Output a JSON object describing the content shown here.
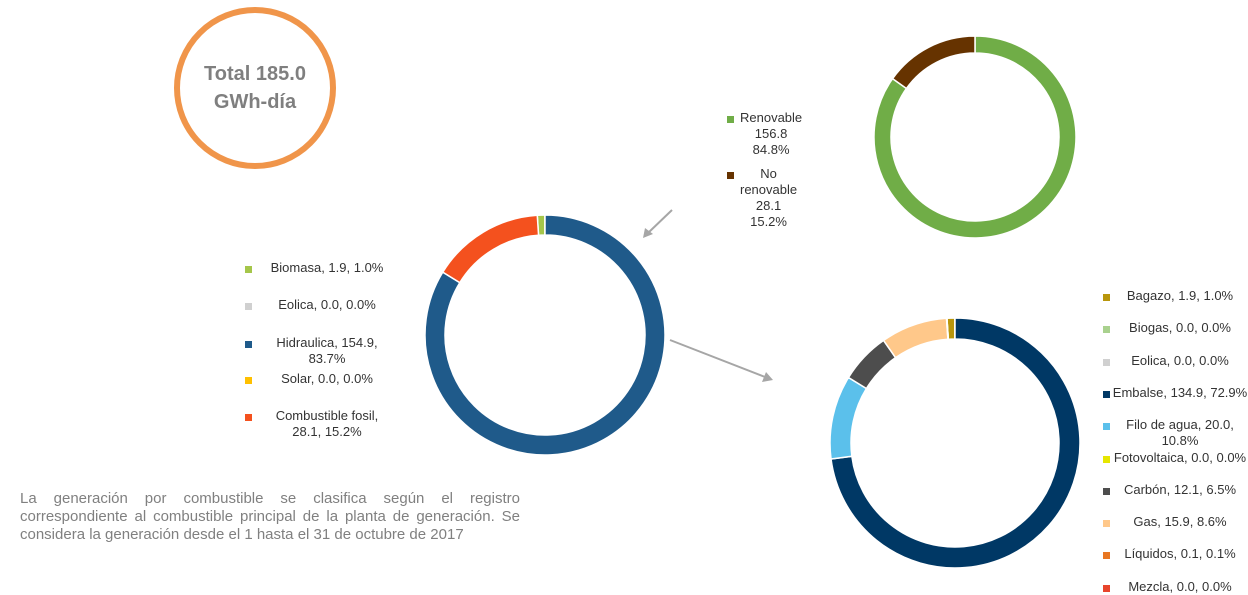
{
  "total": "Total 185.0 GWh-día",
  "note": "La generación por combustible se clasifica según el registro correspondiente al combustible principal de la planta de generación. Se considera la generación desde el 1 hasta el 31 de octubre de 2017",
  "chart_data": [
    {
      "type": "pie",
      "categories": [
        "Renovable 156.8 84.8%",
        "No renovable 28.1 15.2%"
      ],
      "values": [
        156.8,
        28.1
      ],
      "colors": [
        "#70ad47",
        "#663300"
      ]
    },
    {
      "type": "pie",
      "categories": [
        "Biomasa, 1.9, 1.0%",
        "Eolica, 0.0, 0.0%",
        "Hidraulica, 154.9, 83.7%",
        "Solar, 0.0, 0.0%",
        "Combustible fosil, 28.1, 15.2%"
      ],
      "values": [
        1.9,
        0.0,
        154.9,
        0.0,
        28.1
      ],
      "colors": [
        "#a5c64a",
        "#d0d0d0",
        "#1f5a8a",
        "#ffc000",
        "#f4511e"
      ]
    },
    {
      "type": "pie",
      "categories": [
        "Bagazo, 1.9, 1.0%",
        "Biogas, 0.0, 0.0%",
        "Eolica, 0.0, 0.0%",
        "Embalse, 134.9, 72.9%",
        "Filo de agua, 20.0, 10.8%",
        "Fotovoltaica, 0.0, 0.0%",
        "Carbón, 12.1, 6.5%",
        "Gas, 15.9, 8.6%",
        "Líquidos, 0.1, 0.1%",
        "Mezcla, 0.0, 0.0%"
      ],
      "values": [
        1.9,
        0.0,
        0.0,
        134.9,
        20.0,
        0.0,
        12.1,
        15.9,
        0.1,
        0.0
      ],
      "colors": [
        "#b8960c",
        "#a9d18e",
        "#d0d0d0",
        "#003865",
        "#5bc0eb",
        "#e6e600",
        "#4d4d4d",
        "#ffc88a",
        "#e87722",
        "#e8452c"
      ]
    }
  ]
}
